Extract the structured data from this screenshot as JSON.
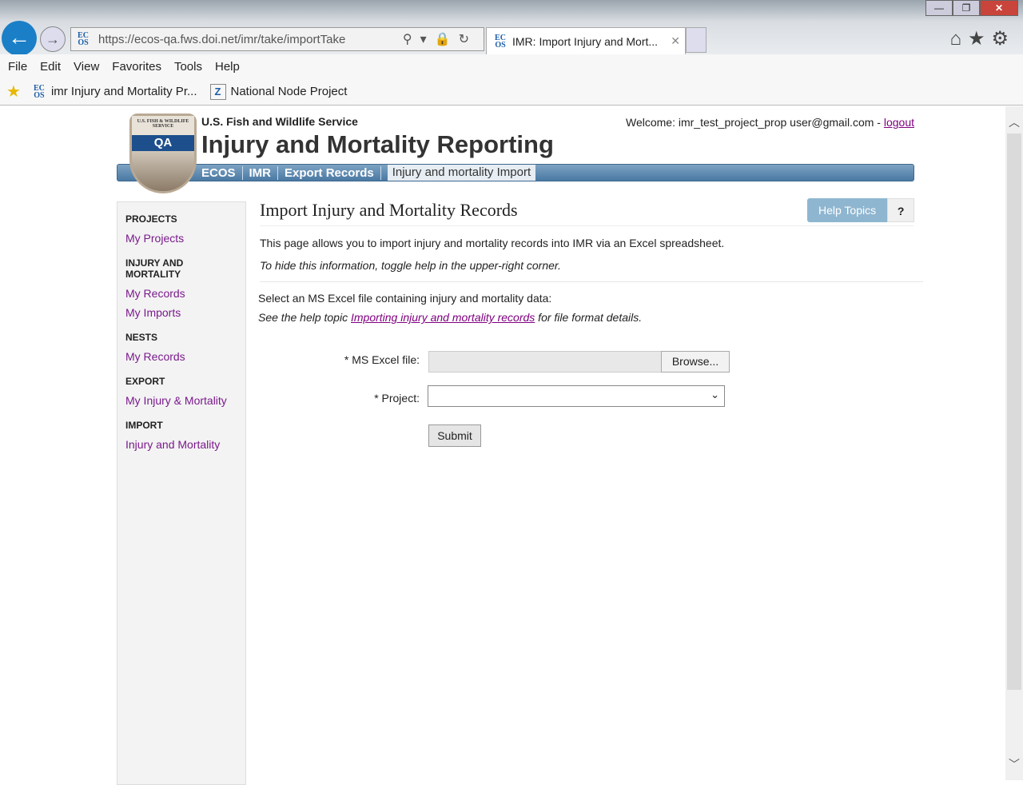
{
  "browser": {
    "url": "https://ecos-qa.fws.doi.net/imr/take/importTake",
    "tab_title": "IMR: Import Injury and Mort...",
    "menu": [
      "File",
      "Edit",
      "View",
      "Favorites",
      "Tools",
      "Help"
    ],
    "favorites": [
      "imr Injury and Mortality Pr...",
      "National Node Project"
    ]
  },
  "header": {
    "logo_text": "U.S. FISH & WILDLIFE SERVICE",
    "logo_badge": "QA",
    "agency": "U.S. Fish and Wildlife Service",
    "title": "Injury and Mortality Reporting",
    "welcome": "Welcome: imr_test_project_prop user@gmail.com - ",
    "logout": "logout",
    "breadcrumb": [
      "ECOS",
      "IMR",
      "Export Records",
      "Injury and mortality Import"
    ]
  },
  "sidebar": [
    {
      "heading": "PROJECTS",
      "links": [
        "My Projects"
      ]
    },
    {
      "heading": "INJURY AND MORTALITY",
      "links": [
        "My Records",
        "My Imports"
      ]
    },
    {
      "heading": "NESTS",
      "links": [
        "My Records"
      ]
    },
    {
      "heading": "EXPORT",
      "links": [
        "My Injury & Mortality"
      ]
    },
    {
      "heading": "IMPORT",
      "links": [
        "Injury and Mortality"
      ]
    }
  ],
  "main": {
    "title": "Import Injury and Mortality Records",
    "help_topics": "Help Topics",
    "help_toggle": "?",
    "intro": "This page allows you to import injury and mortality records into IMR via an Excel spreadsheet.",
    "hint": "To hide this information, toggle help in the upper-right corner.",
    "select_text": "Select an MS Excel file containing injury and mortality data:",
    "see_prefix": "See the help topic ",
    "see_link": "Importing injury and mortality records",
    "see_suffix": " for file format details.",
    "file_label": "* MS Excel file:",
    "browse": "Browse...",
    "project_label": "* Project:",
    "project_value": "",
    "submit": "Submit"
  }
}
